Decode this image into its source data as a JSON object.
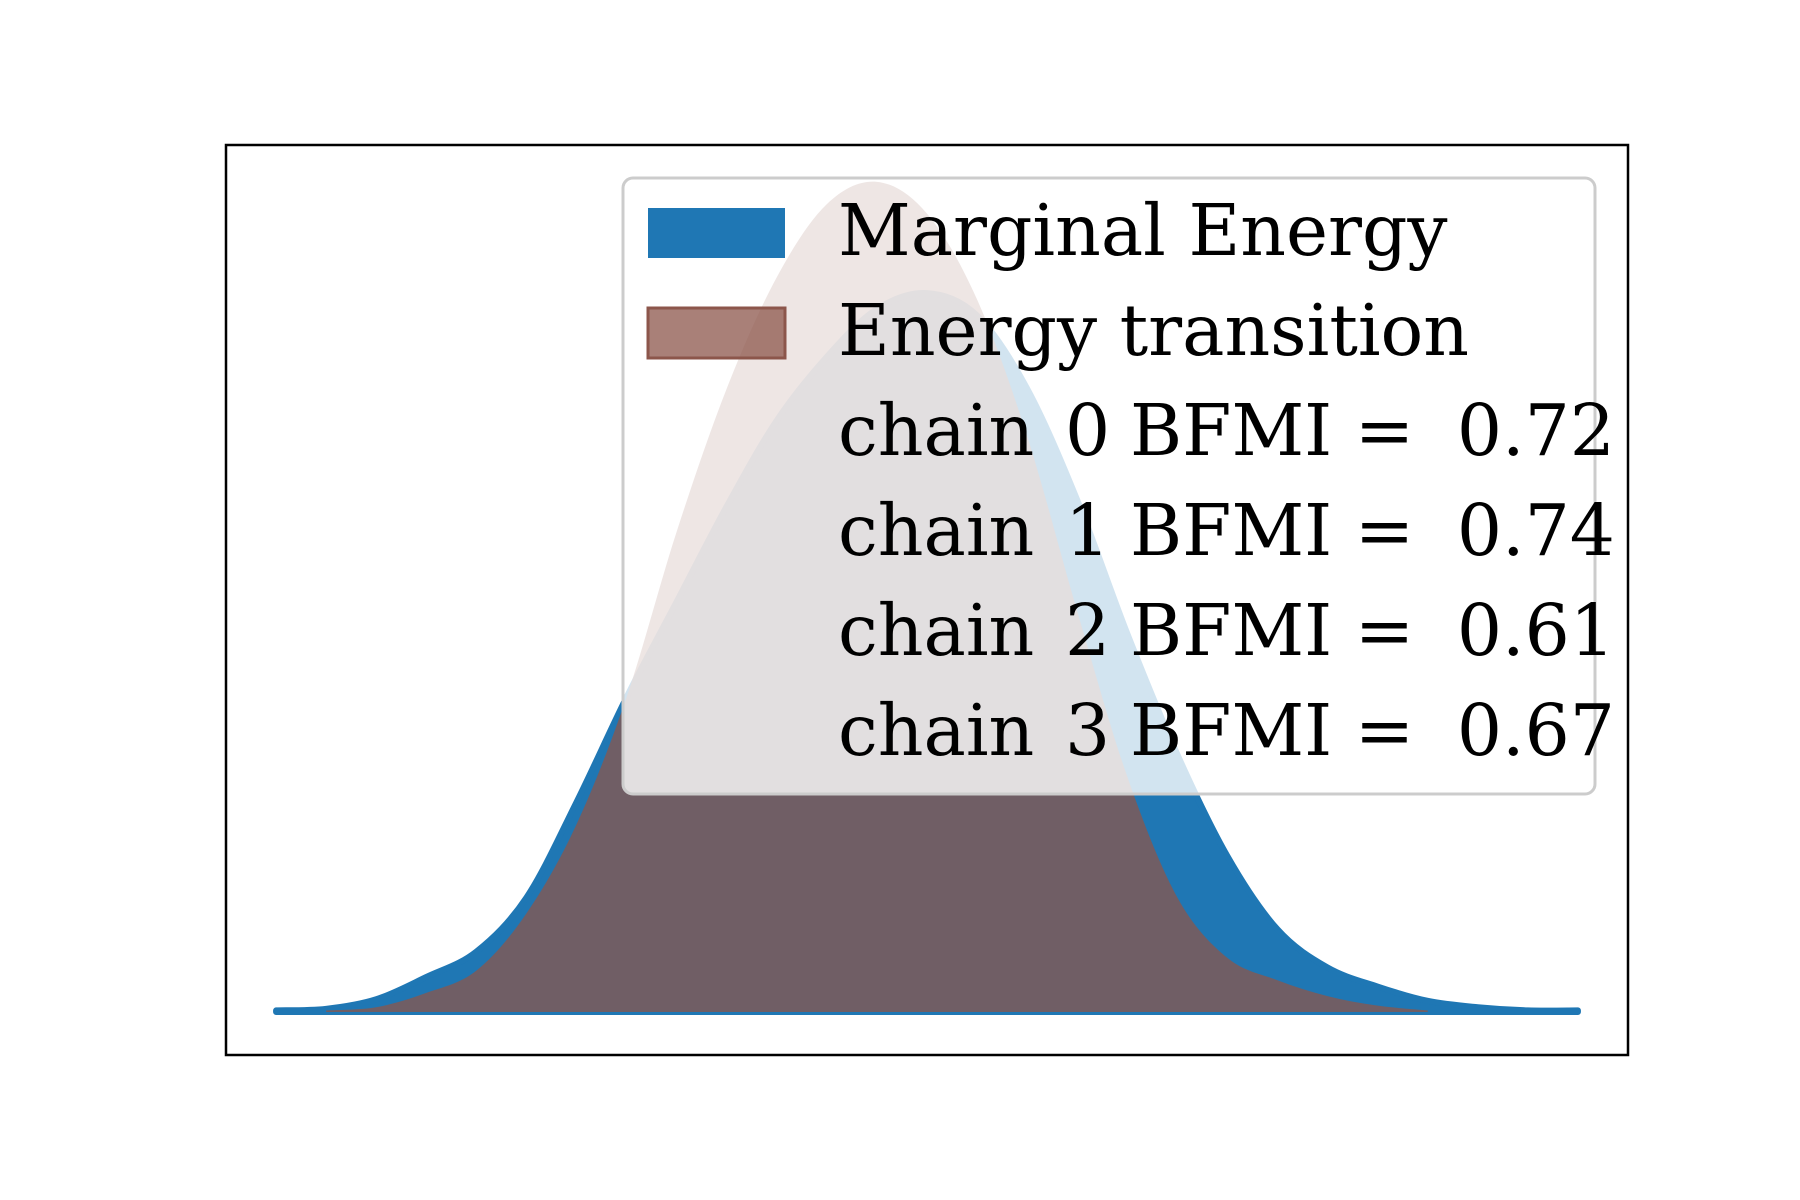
{
  "chart_data": {
    "type": "area",
    "title": "",
    "xlabel": "",
    "ylabel": "",
    "xlim": [
      -4.2,
      4.2
    ],
    "ylim": [
      0,
      0.52
    ],
    "legend_position": "upper-right",
    "grid": false,
    "axes_ticks": false,
    "series": [
      {
        "name": "Marginal Energy",
        "color": "#1f77b4",
        "x": [
          -3.9,
          -3.6,
          -3.3,
          -3.0,
          -2.7,
          -2.4,
          -2.1,
          -1.8,
          -1.5,
          -1.2,
          -0.9,
          -0.6,
          -0.3,
          0.0,
          0.3,
          0.6,
          0.9,
          1.2,
          1.5,
          1.8,
          2.1,
          2.4,
          2.7,
          3.0,
          3.3,
          3.6,
          3.9
        ],
        "values": [
          0.001,
          0.002,
          0.008,
          0.022,
          0.038,
          0.072,
          0.132,
          0.198,
          0.258,
          0.318,
          0.372,
          0.412,
          0.442,
          0.452,
          0.438,
          0.392,
          0.322,
          0.238,
          0.162,
          0.098,
          0.052,
          0.028,
          0.016,
          0.007,
          0.003,
          0.001,
          0.001
        ]
      },
      {
        "name": "Energy transition",
        "color": "#8c564b",
        "x": [
          -3.6,
          -3.3,
          -3.0,
          -2.7,
          -2.4,
          -2.1,
          -1.8,
          -1.5,
          -1.2,
          -0.9,
          -0.6,
          -0.3,
          0.0,
          0.3,
          0.6,
          0.9,
          1.2,
          1.5,
          1.8,
          2.1,
          2.4,
          2.7,
          3.0
        ],
        "values": [
          0.001,
          0.003,
          0.012,
          0.026,
          0.062,
          0.118,
          0.198,
          0.302,
          0.392,
          0.462,
          0.508,
          0.522,
          0.502,
          0.448,
          0.362,
          0.252,
          0.148,
          0.072,
          0.034,
          0.02,
          0.01,
          0.004,
          0.001
        ]
      }
    ],
    "legend": {
      "entries": [
        "Marginal Energy",
        "Energy transition"
      ],
      "bfmi_prefix": "chain",
      "bfmi_label": "BFMI =",
      "bfmi": [
        {
          "chain": "0",
          "value": "0.72"
        },
        {
          "chain": "1",
          "value": "0.74"
        },
        {
          "chain": "2",
          "value": "0.61"
        },
        {
          "chain": "3",
          "value": "0.67"
        }
      ]
    }
  }
}
